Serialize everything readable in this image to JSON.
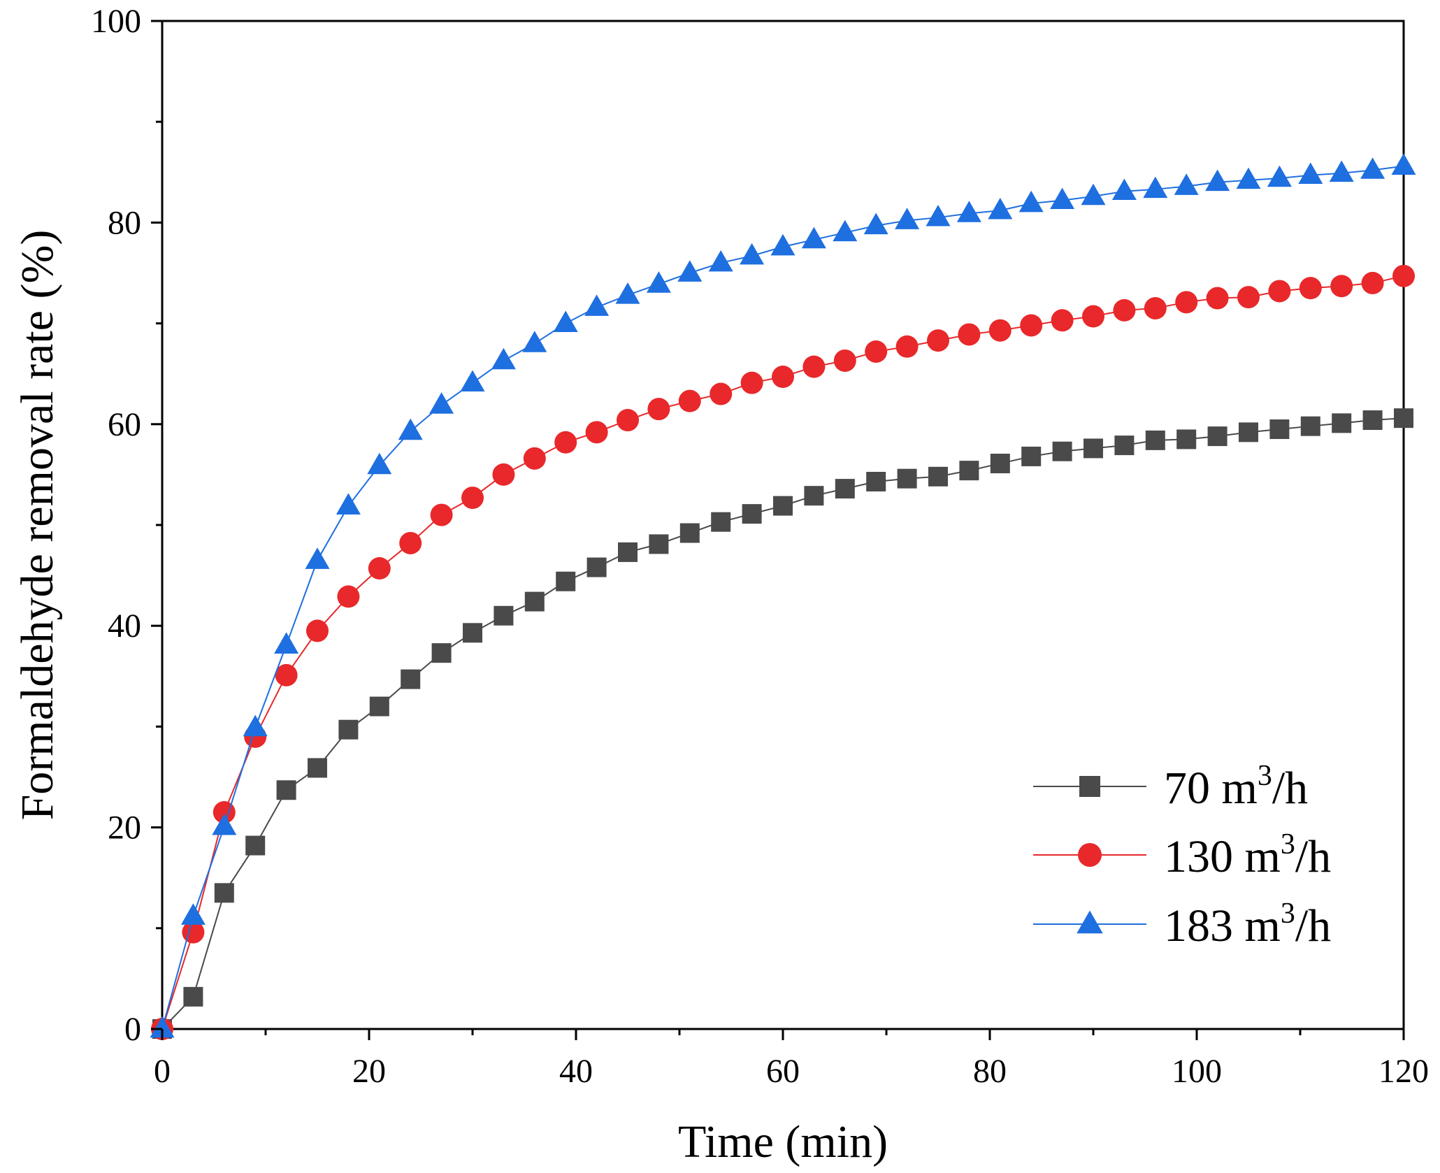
{
  "chart_data": {
    "type": "line",
    "title": "",
    "xlabel": "Time (min)",
    "ylabel": "Formaldehyde removal rate (%)",
    "xlim": [
      0,
      120
    ],
    "ylim": [
      0,
      100
    ],
    "xticks": [
      0,
      20,
      40,
      60,
      80,
      100,
      120
    ],
    "yticks": [
      0,
      20,
      40,
      60,
      80,
      100
    ],
    "grid": false,
    "legend_position": "bottom-right",
    "x": [
      0,
      3,
      6,
      9,
      12,
      15,
      18,
      21,
      24,
      27,
      30,
      33,
      36,
      39,
      42,
      45,
      48,
      51,
      54,
      57,
      60,
      63,
      66,
      69,
      72,
      75,
      78,
      81,
      84,
      87,
      90,
      93,
      96,
      99,
      102,
      105,
      108,
      111,
      114,
      117,
      120
    ],
    "series": [
      {
        "name": "70 m³/h",
        "legend_main": "70 m",
        "legend_sup": "3",
        "legend_tail": "/h",
        "marker": "square",
        "color": "#4a4a4a",
        "values": [
          0,
          3.2,
          13.5,
          18.2,
          23.7,
          25.9,
          29.7,
          32.0,
          34.7,
          37.3,
          39.3,
          41.0,
          42.4,
          44.4,
          45.8,
          47.3,
          48.1,
          49.2,
          50.3,
          51.1,
          51.9,
          52.9,
          53.6,
          54.3,
          54.6,
          54.8,
          55.4,
          56.1,
          56.8,
          57.3,
          57.6,
          57.9,
          58.4,
          58.5,
          58.8,
          59.2,
          59.5,
          59.8,
          60.1,
          60.4,
          60.6
        ]
      },
      {
        "name": "130 m³/h",
        "legend_main": "130 m",
        "legend_sup": "3",
        "legend_tail": "/h",
        "marker": "circle",
        "color": "#e8282a",
        "values": [
          0,
          9.6,
          21.5,
          29.0,
          35.1,
          39.5,
          42.9,
          45.7,
          48.2,
          51.0,
          52.7,
          55.0,
          56.6,
          58.2,
          59.2,
          60.4,
          61.5,
          62.3,
          63.0,
          64.1,
          64.7,
          65.7,
          66.3,
          67.2,
          67.7,
          68.3,
          68.9,
          69.3,
          69.8,
          70.3,
          70.7,
          71.3,
          71.5,
          72.1,
          72.5,
          72.6,
          73.2,
          73.5,
          73.7,
          74.0,
          74.7
        ]
      },
      {
        "name": "183 m³/h",
        "legend_main": "183 m",
        "legend_sup": "3",
        "legend_tail": "/h",
        "marker": "triangle",
        "color": "#1e6fe0",
        "values": [
          0,
          11.2,
          20.1,
          29.9,
          38.1,
          46.5,
          51.9,
          55.9,
          59.3,
          61.9,
          64.1,
          66.3,
          68.0,
          70.0,
          71.6,
          72.8,
          73.9,
          75.0,
          76.0,
          76.7,
          77.6,
          78.3,
          79.0,
          79.7,
          80.2,
          80.5,
          80.9,
          81.2,
          81.9,
          82.2,
          82.6,
          83.1,
          83.3,
          83.6,
          84.0,
          84.2,
          84.4,
          84.7,
          84.9,
          85.2,
          85.6
        ]
      }
    ]
  }
}
